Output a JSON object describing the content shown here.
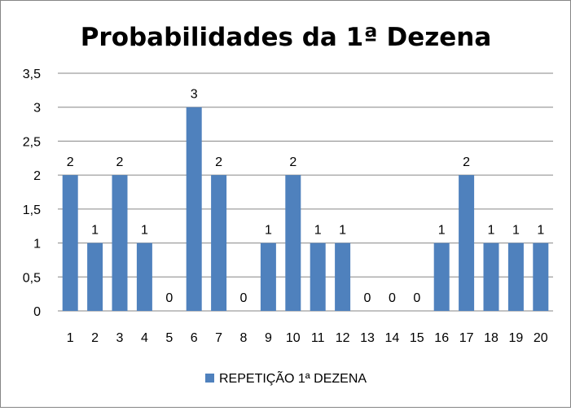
{
  "chart_data": {
    "type": "bar",
    "title": "Probabilidades da 1ª Dezena",
    "categories": [
      "1",
      "2",
      "3",
      "4",
      "5",
      "6",
      "7",
      "8",
      "9",
      "10",
      "11",
      "12",
      "13",
      "14",
      "15",
      "16",
      "17",
      "18",
      "19",
      "20"
    ],
    "series": [
      {
        "name": "REPETIÇÃO 1ª DEZENA",
        "values": [
          2,
          1,
          2,
          1,
          0,
          3,
          2,
          0,
          1,
          2,
          1,
          1,
          0,
          0,
          0,
          1,
          2,
          1,
          1,
          1
        ]
      }
    ],
    "y_ticks": [
      "0",
      "0,5",
      "1",
      "1,5",
      "2",
      "2,5",
      "3",
      "3,5"
    ],
    "ylim": [
      0,
      3.5
    ],
    "grid": true,
    "legend_position": "bottom",
    "bar_color": "#4f81bd",
    "grid_color": "#868686"
  }
}
